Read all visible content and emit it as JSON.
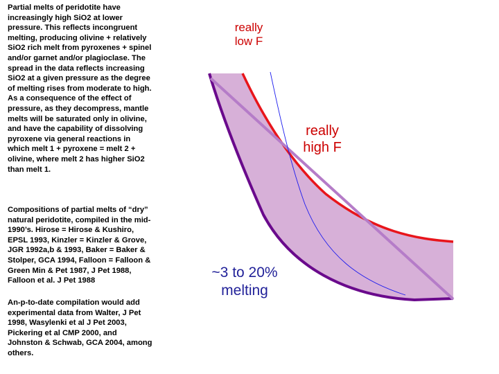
{
  "text": {
    "para1": "Partial melts of peridotite have increasingly high SiO2 at lower pressure. This reflects incongruent melting, producing olivine + relatively SiO2 rich melt from pyroxenes + spinel and/or garnet and/or plagioclase. The spread in the data reflects increasing SiO2 at a given pressure as the degree of melting rises from moderate to high. As a consequence of the effect of pressure, as they decompress, mantle melts will be saturated only in olivine, and have the capability of dissolving pyroxene via general reactions in which melt 1 + pyroxene = melt 2 + olivine, where melt 2 has higher SiO2 than melt 1.",
    "para2": "Compositions of partial melts of “dry” natural peridotite, compiled in the mid-1990’s. Hirose = Hirose & Kushiro, EPSL 1993, Kinzler = Kinzler & Grove, JGR 1992a,b & 1993, Baker = Baker & Stolper, GCA 1994, Falloon = Falloon & Green Min & Pet 1987, J Pet 1988, Falloon et al. J Pet 1988",
    "para3": "An-p-to-date compilation would add experimental data from Walter, J Pet 1998, Wasylenki et al J Pet 2003, Pickering et al CMP 2000, and Johnston & Schwab, GCA 2004, among others."
  },
  "labels": {
    "really_low_f": "really low F",
    "really_high_f": "really high F",
    "melting_range": "~3 to 20% melting"
  },
  "colors": {
    "field_fill": "#d7b0d8",
    "high_f_curve": "#e8151b",
    "low_f_curve": "#6a0a8c",
    "mid_line": "#b57cc8",
    "thin_curve": "#1a1aee",
    "label_red": "#cc0000"
  }
}
